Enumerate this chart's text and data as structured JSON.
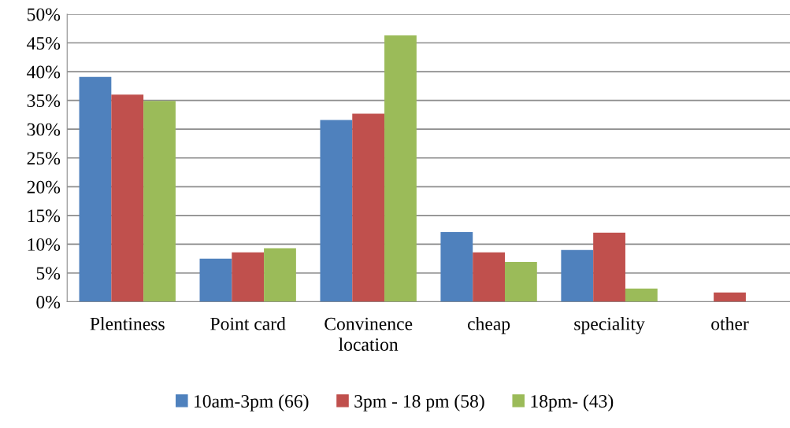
{
  "chart_data": {
    "type": "bar",
    "categories": [
      "Plentiness",
      "Point card",
      "Convinence\nlocation",
      "cheap",
      "speciality",
      "other"
    ],
    "series": [
      {
        "name": "10am-3pm (66)",
        "color": "#4f81bd",
        "values": [
          39.1,
          7.5,
          31.6,
          12.1,
          9.0,
          0
        ]
      },
      {
        "name": "3pm - 18 pm (58)",
        "color": "#c0504d",
        "values": [
          36.0,
          8.6,
          32.7,
          8.6,
          12.0,
          1.6
        ]
      },
      {
        "name": "18pm- (43)",
        "color": "#9bbb59",
        "values": [
          34.9,
          9.3,
          46.3,
          6.9,
          2.3,
          0
        ]
      }
    ],
    "ylim": [
      0,
      50
    ],
    "yticks": [
      {
        "value": 0,
        "label": "0%"
      },
      {
        "value": 5,
        "label": "5%"
      },
      {
        "value": 10,
        "label": "10%"
      },
      {
        "value": 15,
        "label": "15%"
      },
      {
        "value": 20,
        "label": "20%"
      },
      {
        "value": 25,
        "label": "25%"
      },
      {
        "value": 30,
        "label": "30%"
      },
      {
        "value": 35,
        "label": "35%"
      },
      {
        "value": 40,
        "label": "40%"
      },
      {
        "value": 45,
        "label": "45%"
      },
      {
        "value": 50,
        "label": "50%"
      }
    ],
    "grid": "y",
    "legend": "bottom"
  }
}
